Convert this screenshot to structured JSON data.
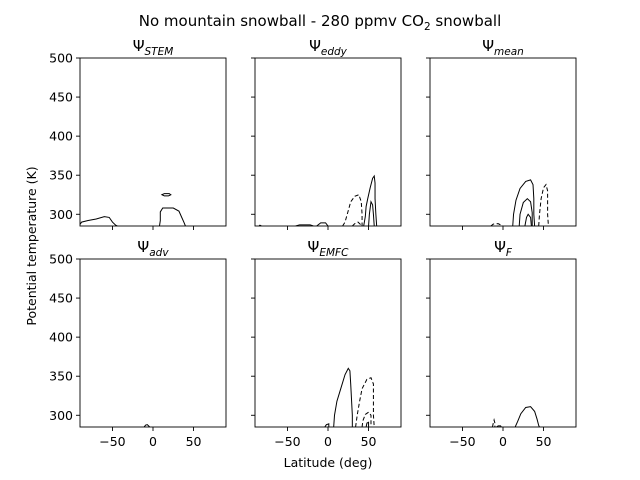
{
  "figure": {
    "title_main": "No mountain snowball - 280 ppmv CO",
    "title_sub": "2",
    "title_tail": " snowball",
    "xlabel": "Latitude (deg)",
    "ylabel": "Potential temperature (K)"
  },
  "chart_data": [
    {
      "type": "contour",
      "title_symbol": "Ψ",
      "title_subscript": "STEM",
      "xlim": [
        -90,
        90
      ],
      "ylim": [
        285,
        500
      ],
      "xticks": [
        -50,
        0,
        50
      ],
      "yticks": [
        300,
        350,
        400,
        450,
        500
      ],
      "show_yticklabels": true,
      "show_xticklabels": false,
      "contours": [
        {
          "sign": "positive",
          "closed": false,
          "points": [
            [
              -90,
              287
            ],
            [
              -88,
              290
            ],
            [
              -80,
              292
            ],
            [
              -70,
              294
            ],
            [
              -60,
              297
            ],
            [
              -54,
              296
            ],
            [
              -50,
              290
            ],
            [
              -46,
              286
            ],
            [
              -44,
              285
            ]
          ]
        },
        {
          "sign": "positive",
          "closed": false,
          "points": [
            [
              8,
              285
            ],
            [
              9,
              292
            ],
            [
              9,
              303
            ],
            [
              12,
              308
            ],
            [
              25,
              308
            ],
            [
              32,
              304
            ],
            [
              35,
              297
            ],
            [
              38,
              290
            ],
            [
              40,
              285
            ]
          ]
        },
        {
          "sign": "positive",
          "closed": true,
          "points": [
            [
              11,
              325
            ],
            [
              14,
              326.5
            ],
            [
              20,
              326.5
            ],
            [
              22,
              325
            ],
            [
              19,
              323.5
            ],
            [
              14,
              323.5
            ],
            [
              11,
              325
            ]
          ]
        }
      ]
    },
    {
      "type": "contour",
      "title_symbol": "Ψ",
      "title_subscript": "eddy",
      "xlim": [
        -90,
        90
      ],
      "ylim": [
        285,
        500
      ],
      "xticks": [
        -50,
        0,
        50
      ],
      "yticks": [
        300,
        350,
        400,
        450,
        500
      ],
      "show_yticklabels": false,
      "show_xticklabels": false,
      "contours": [
        {
          "sign": "positive",
          "closed": false,
          "points": [
            [
              -85,
              285
            ],
            [
              -84,
              286
            ],
            [
              -82,
              285
            ]
          ]
        },
        {
          "sign": "positive",
          "closed": false,
          "points": [
            [
              -40,
              285
            ],
            [
              -35,
              286.5
            ],
            [
              -22,
              286.5
            ],
            [
              -18,
              285
            ]
          ]
        },
        {
          "sign": "positive",
          "closed": false,
          "points": [
            [
              -14,
              285
            ],
            [
              -9,
              289
            ],
            [
              -3,
              289
            ],
            [
              0,
              285
            ]
          ]
        },
        {
          "sign": "negative",
          "closed": false,
          "points": [
            [
              18,
              285
            ],
            [
              21,
              290
            ],
            [
              24,
              301
            ],
            [
              28,
              316
            ],
            [
              33,
              323
            ],
            [
              38,
              325
            ],
            [
              41,
              316
            ],
            [
              42,
              300
            ],
            [
              42,
              285
            ]
          ]
        },
        {
          "sign": "negative",
          "closed": false,
          "points": [
            [
              30,
              285
            ],
            [
              33,
              288
            ],
            [
              37,
              290
            ],
            [
              40,
              287
            ],
            [
              41,
              285
            ]
          ]
        },
        {
          "sign": "positive",
          "closed": false,
          "points": [
            [
              44,
              285
            ],
            [
              46,
              297
            ],
            [
              47,
              310
            ],
            [
              49,
              320
            ],
            [
              52,
              334
            ],
            [
              55,
              346
            ],
            [
              57,
              349
            ],
            [
              58,
              340
            ],
            [
              58,
              320
            ],
            [
              59,
              300
            ],
            [
              60,
              285
            ]
          ]
        },
        {
          "sign": "positive",
          "closed": false,
          "points": [
            [
              50,
              285
            ],
            [
              51,
              300
            ],
            [
              53,
              316
            ],
            [
              55,
              312
            ],
            [
              56,
              300
            ],
            [
              57,
              285
            ]
          ]
        }
      ]
    },
    {
      "type": "contour",
      "title_symbol": "Ψ",
      "title_subscript": "mean",
      "xlim": [
        -90,
        90
      ],
      "ylim": [
        285,
        500
      ],
      "xticks": [
        -50,
        0,
        50
      ],
      "yticks": [
        300,
        350,
        400,
        450,
        500
      ],
      "show_yticklabels": false,
      "show_xticklabels": false,
      "contours": [
        {
          "sign": "negative",
          "closed": false,
          "points": [
            [
              -15,
              285
            ],
            [
              -12,
              287.5
            ],
            [
              -6,
              288
            ],
            [
              -2,
              286
            ],
            [
              0,
              285
            ]
          ]
        },
        {
          "sign": "positive",
          "closed": false,
          "points": [
            [
              12,
              285
            ],
            [
              13,
              300
            ],
            [
              16,
              318
            ],
            [
              21,
              333
            ],
            [
              28,
              342
            ],
            [
              34,
              344
            ],
            [
              37,
              338
            ],
            [
              38,
              320
            ],
            [
              38,
              300
            ],
            [
              39,
              285
            ]
          ]
        },
        {
          "sign": "positive",
          "closed": false,
          "points": [
            [
              20,
              285
            ],
            [
              21,
              300
            ],
            [
              25,
              315
            ],
            [
              30,
              320
            ],
            [
              34,
              316
            ],
            [
              36,
              302
            ],
            [
              36,
              285
            ]
          ]
        },
        {
          "sign": "positive",
          "closed": false,
          "points": [
            [
              27,
              285
            ],
            [
              29,
              296
            ],
            [
              31,
              300
            ],
            [
              34,
              296
            ],
            [
              35,
              285
            ]
          ]
        },
        {
          "sign": "negative",
          "closed": false,
          "points": [
            [
              44,
              285
            ],
            [
              45,
              300
            ],
            [
              47,
              320
            ],
            [
              50,
              334
            ],
            [
              53,
              338
            ],
            [
              55,
              330
            ],
            [
              55,
              300
            ],
            [
              56,
              285
            ]
          ]
        }
      ]
    },
    {
      "type": "contour",
      "title_symbol": "Ψ",
      "title_subscript": "adv",
      "xlim": [
        -90,
        90
      ],
      "ylim": [
        285,
        500
      ],
      "xticks": [
        -50,
        0,
        50
      ],
      "yticks": [
        300,
        350,
        400,
        450,
        500
      ],
      "show_yticklabels": true,
      "show_xticklabels": true,
      "contours": [
        {
          "sign": "positive",
          "closed": false,
          "points": [
            [
              -11,
              285
            ],
            [
              -9,
              287.5
            ],
            [
              -7,
              288
            ],
            [
              -5,
              286
            ],
            [
              -4,
              285
            ]
          ]
        }
      ]
    },
    {
      "type": "contour",
      "title_symbol": "Ψ",
      "title_subscript": "EMFC",
      "xlim": [
        -90,
        90
      ],
      "ylim": [
        285,
        500
      ],
      "xticks": [
        -50,
        0,
        50
      ],
      "yticks": [
        300,
        350,
        400,
        450,
        500
      ],
      "show_yticklabels": false,
      "show_xticklabels": true,
      "contours": [
        {
          "sign": "positive",
          "closed": false,
          "points": [
            [
              -4,
              285
            ],
            [
              -2,
              288
            ],
            [
              1,
              289
            ],
            [
              1,
              285
            ]
          ]
        },
        {
          "sign": "positive",
          "closed": false,
          "points": [
            [
              7,
              285
            ],
            [
              8,
              300
            ],
            [
              11,
              318
            ],
            [
              16,
              335
            ],
            [
              21,
              352
            ],
            [
              25,
              360
            ],
            [
              27,
              357
            ],
            [
              28,
              340
            ],
            [
              29,
              320
            ],
            [
              30,
              300
            ],
            [
              30,
              285
            ]
          ]
        },
        {
          "sign": "negative",
          "closed": false,
          "points": [
            [
              34,
              285
            ],
            [
              36,
              300
            ],
            [
              39,
              318
            ],
            [
              42,
              334
            ],
            [
              48,
              346
            ],
            [
              53,
              348
            ],
            [
              56,
              340
            ],
            [
              56,
              320
            ],
            [
              56,
              300
            ],
            [
              57,
              285
            ]
          ]
        },
        {
          "sign": "negative",
          "closed": false,
          "points": [
            [
              42,
              285
            ],
            [
              43,
              293
            ],
            [
              46,
              301
            ],
            [
              50,
              304
            ],
            [
              53,
              300
            ],
            [
              53,
              285
            ]
          ]
        },
        {
          "sign": "positive",
          "closed": false,
          "points": [
            [
              47,
              285
            ],
            [
              48,
              290
            ],
            [
              50,
              291
            ],
            [
              50,
              285
            ]
          ]
        }
      ]
    },
    {
      "type": "contour",
      "title_symbol": "Ψ",
      "title_subscript": "F",
      "xlim": [
        -90,
        90
      ],
      "ylim": [
        285,
        500
      ],
      "xticks": [
        -50,
        0,
        50
      ],
      "yticks": [
        300,
        350,
        400,
        450,
        500
      ],
      "show_yticklabels": false,
      "show_xticklabels": true,
      "contours": [
        {
          "sign": "negative",
          "closed": false,
          "points": [
            [
              -13,
              285
            ],
            [
              -12,
              290
            ],
            [
              -11,
              294
            ],
            [
              -10,
              290
            ],
            [
              -10,
              285
            ]
          ]
        },
        {
          "sign": "positive",
          "closed": false,
          "points": [
            [
              -8,
              285
            ],
            [
              -6,
              286.5
            ],
            [
              -3,
              286.5
            ],
            [
              -2,
              285
            ]
          ]
        },
        {
          "sign": "positive",
          "closed": false,
          "points": [
            [
              15,
              285
            ],
            [
              18,
              292
            ],
            [
              22,
              302
            ],
            [
              28,
              310
            ],
            [
              34,
              311
            ],
            [
              39,
              305
            ],
            [
              42,
              295
            ],
            [
              44,
              287
            ],
            [
              45,
              285
            ]
          ]
        }
      ]
    }
  ]
}
